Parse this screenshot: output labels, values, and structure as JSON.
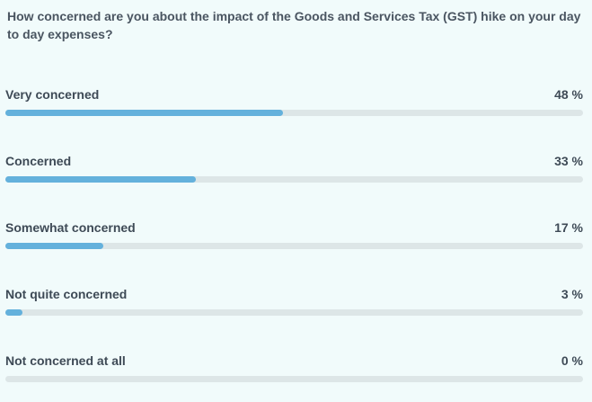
{
  "poll": {
    "question": "How concerned are you about the impact of the Goods and Services Tax (GST) hike on your day to day expenses?"
  },
  "colors": {
    "background": "#f1fbfb",
    "bar_fill": "#64b1dc",
    "bar_track": "#dde6e7",
    "text": "#3e4a56"
  },
  "chart_data": {
    "type": "bar",
    "orientation": "horizontal",
    "categories": [
      "Very concerned",
      "Concerned",
      "Somewhat concerned",
      "Not quite concerned",
      "Not concerned at all"
    ],
    "values": [
      48,
      33,
      17,
      3,
      0
    ],
    "value_labels": [
      "48 %",
      "33 %",
      "17 %",
      "3 %",
      "0 %"
    ],
    "xlim": [
      0,
      100
    ],
    "grid": false
  }
}
